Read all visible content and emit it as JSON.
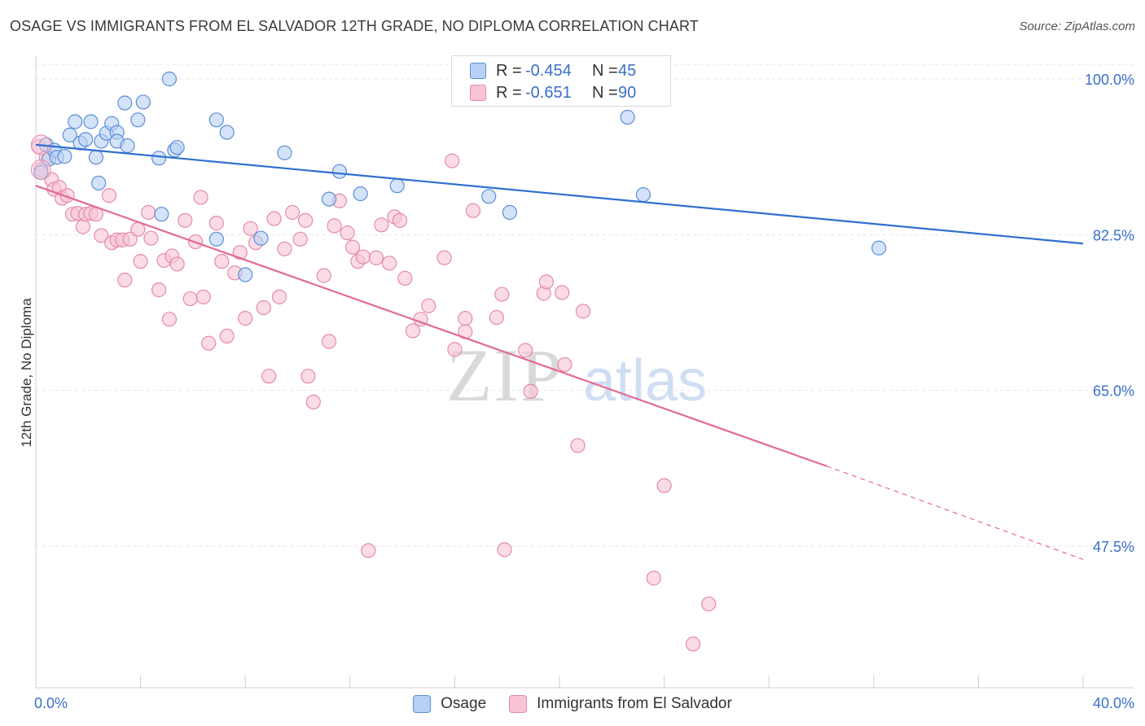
{
  "header": {
    "title": "OSAGE VS IMMIGRANTS FROM EL SALVADOR 12TH GRADE, NO DIPLOMA CORRELATION CHART",
    "source": "Source: ZipAtlas.com"
  },
  "watermark": {
    "zip": "ZIP",
    "atlas": "atlas"
  },
  "legend_stats": [
    {
      "r_label": "R =",
      "r_value": "-0.454",
      "n_label": "N =",
      "n_value": "45",
      "fill": "#b8d0f3",
      "stroke": "#5b8ed8"
    },
    {
      "r_label": "R =",
      "r_value": "-0.651",
      "n_label": "N =",
      "n_value": "90",
      "fill": "#f8c4d5",
      "stroke": "#e58aa8"
    }
  ],
  "chart_data": {
    "type": "scatter",
    "title": "OSAGE VS IMMIGRANTS FROM EL SALVADOR 12TH GRADE, NO DIPLOMA CORRELATION CHART",
    "xlabel": "",
    "ylabel": "12th Grade, No Diploma",
    "xlim": [
      0,
      40
    ],
    "ylim": [
      30,
      102
    ],
    "x_tick_labels": [
      "0.0%",
      "40.0%"
    ],
    "y_ticks": [
      47.5,
      65.0,
      82.5,
      100.0
    ],
    "y_tick_labels": [
      "47.5%",
      "65.0%",
      "82.5%",
      "100.0%"
    ],
    "grid": true,
    "legend_position": "bottom",
    "series": [
      {
        "name": "Osage",
        "color": "#5b8ed8",
        "fill": "#b8d0f3",
        "trend": {
          "x0": 0,
          "y0": 92.6,
          "x1": 40,
          "y1": 81.5,
          "color": "#2f6fd0"
        },
        "points": [
          [
            0.2,
            89.5
          ],
          [
            0.4,
            92.6
          ],
          [
            0.5,
            91.0
          ],
          [
            0.7,
            92.0
          ],
          [
            0.8,
            91.2
          ],
          [
            1.1,
            91.3
          ],
          [
            1.3,
            93.7
          ],
          [
            1.5,
            95.2
          ],
          [
            1.7,
            92.8
          ],
          [
            1.9,
            93.2
          ],
          [
            2.1,
            95.2
          ],
          [
            2.3,
            91.2
          ],
          [
            2.4,
            88.3
          ],
          [
            2.5,
            93.0
          ],
          [
            2.7,
            93.9
          ],
          [
            2.9,
            95.0
          ],
          [
            3.1,
            94.0
          ],
          [
            3.1,
            93.0
          ],
          [
            3.4,
            97.3
          ],
          [
            3.5,
            92.5
          ],
          [
            3.9,
            95.4
          ],
          [
            4.1,
            97.4
          ],
          [
            4.7,
            91.1
          ],
          [
            4.8,
            84.8
          ],
          [
            5.1,
            100.0
          ],
          [
            5.3,
            92.0
          ],
          [
            5.4,
            92.3
          ],
          [
            6.9,
            95.4
          ],
          [
            6.9,
            82.0
          ],
          [
            7.3,
            94.0
          ],
          [
            8.0,
            78.0
          ],
          [
            8.6,
            82.1
          ],
          [
            9.5,
            91.7
          ],
          [
            11.2,
            86.5
          ],
          [
            11.6,
            89.6
          ],
          [
            12.4,
            87.1
          ],
          [
            13.8,
            88.0
          ],
          [
            17.3,
            86.8
          ],
          [
            18.1,
            85.0
          ],
          [
            22.6,
            95.7
          ],
          [
            23.2,
            87.0
          ],
          [
            32.2,
            81.0
          ]
        ]
      },
      {
        "name": "Immigrants from El Salvador",
        "color": "#e58aa8",
        "fill": "#f8c4d5",
        "trend": {
          "x0": 0,
          "y0": 88.0,
          "x1": 30.2,
          "y1": 56.5,
          "x_dash_end": 40,
          "y_dash_end": 46.0,
          "color": "#e26a93"
        },
        "points": [
          [
            0.1,
            92.4
          ],
          [
            0.2,
            89.8
          ],
          [
            0.4,
            91.2
          ],
          [
            0.6,
            88.7
          ],
          [
            0.7,
            87.6
          ],
          [
            0.9,
            87.8
          ],
          [
            1.0,
            86.6
          ],
          [
            1.2,
            86.9
          ],
          [
            1.4,
            84.8
          ],
          [
            1.6,
            84.9
          ],
          [
            1.8,
            83.4
          ],
          [
            1.9,
            84.8
          ],
          [
            2.1,
            84.9
          ],
          [
            2.3,
            84.8
          ],
          [
            2.5,
            82.4
          ],
          [
            2.8,
            86.9
          ],
          [
            2.9,
            81.6
          ],
          [
            3.1,
            81.9
          ],
          [
            3.3,
            81.9
          ],
          [
            3.4,
            77.4
          ],
          [
            3.6,
            82.0
          ],
          [
            3.9,
            83.1
          ],
          [
            4.0,
            79.5
          ],
          [
            4.3,
            85.0
          ],
          [
            4.4,
            82.1
          ],
          [
            4.7,
            76.3
          ],
          [
            4.9,
            79.6
          ],
          [
            5.1,
            73.0
          ],
          [
            5.2,
            80.1
          ],
          [
            5.4,
            79.2
          ],
          [
            5.7,
            84.1
          ],
          [
            5.9,
            75.3
          ],
          [
            6.1,
            81.7
          ],
          [
            6.3,
            86.7
          ],
          [
            6.4,
            75.5
          ],
          [
            6.6,
            70.3
          ],
          [
            6.9,
            83.8
          ],
          [
            7.1,
            79.5
          ],
          [
            7.3,
            71.1
          ],
          [
            7.6,
            78.2
          ],
          [
            7.8,
            80.5
          ],
          [
            8.0,
            73.1
          ],
          [
            8.2,
            83.2
          ],
          [
            8.4,
            81.6
          ],
          [
            8.7,
            74.3
          ],
          [
            8.9,
            66.6
          ],
          [
            9.1,
            84.3
          ],
          [
            9.3,
            75.5
          ],
          [
            9.5,
            80.9
          ],
          [
            9.8,
            85.0
          ],
          [
            10.1,
            82.0
          ],
          [
            10.3,
            84.1
          ],
          [
            10.4,
            66.6
          ],
          [
            10.6,
            63.7
          ],
          [
            11.0,
            77.9
          ],
          [
            11.2,
            70.5
          ],
          [
            11.4,
            83.5
          ],
          [
            11.6,
            86.3
          ],
          [
            11.9,
            82.7
          ],
          [
            12.1,
            81.1
          ],
          [
            12.3,
            79.5
          ],
          [
            12.5,
            80.0
          ],
          [
            12.7,
            47.0
          ],
          [
            13.0,
            79.9
          ],
          [
            13.2,
            83.6
          ],
          [
            13.5,
            79.3
          ],
          [
            13.7,
            84.5
          ],
          [
            13.9,
            84.1
          ],
          [
            14.1,
            77.6
          ],
          [
            14.4,
            71.7
          ],
          [
            14.7,
            73.0
          ],
          [
            15.0,
            74.5
          ],
          [
            15.6,
            79.9
          ],
          [
            15.9,
            90.8
          ],
          [
            16.0,
            69.6
          ],
          [
            16.4,
            71.6
          ],
          [
            16.4,
            73.1
          ],
          [
            16.7,
            85.2
          ],
          [
            17.6,
            73.2
          ],
          [
            17.8,
            75.8
          ],
          [
            17.9,
            47.1
          ],
          [
            18.7,
            69.5
          ],
          [
            18.9,
            64.9
          ],
          [
            19.4,
            75.9
          ],
          [
            19.5,
            77.2
          ],
          [
            20.1,
            76.0
          ],
          [
            20.2,
            67.9
          ],
          [
            20.7,
            58.8
          ],
          [
            20.9,
            73.9
          ],
          [
            24.0,
            54.3
          ],
          [
            23.6,
            43.9
          ],
          [
            25.7,
            41.0
          ],
          [
            25.1,
            36.5
          ]
        ]
      }
    ]
  },
  "legend_bottom": [
    {
      "label": "Osage",
      "fill": "#b8d0f3",
      "stroke": "#5b8ed8"
    },
    {
      "label": "Immigrants from El Salvador",
      "fill": "#f8c4d5",
      "stroke": "#e58aa8"
    }
  ]
}
